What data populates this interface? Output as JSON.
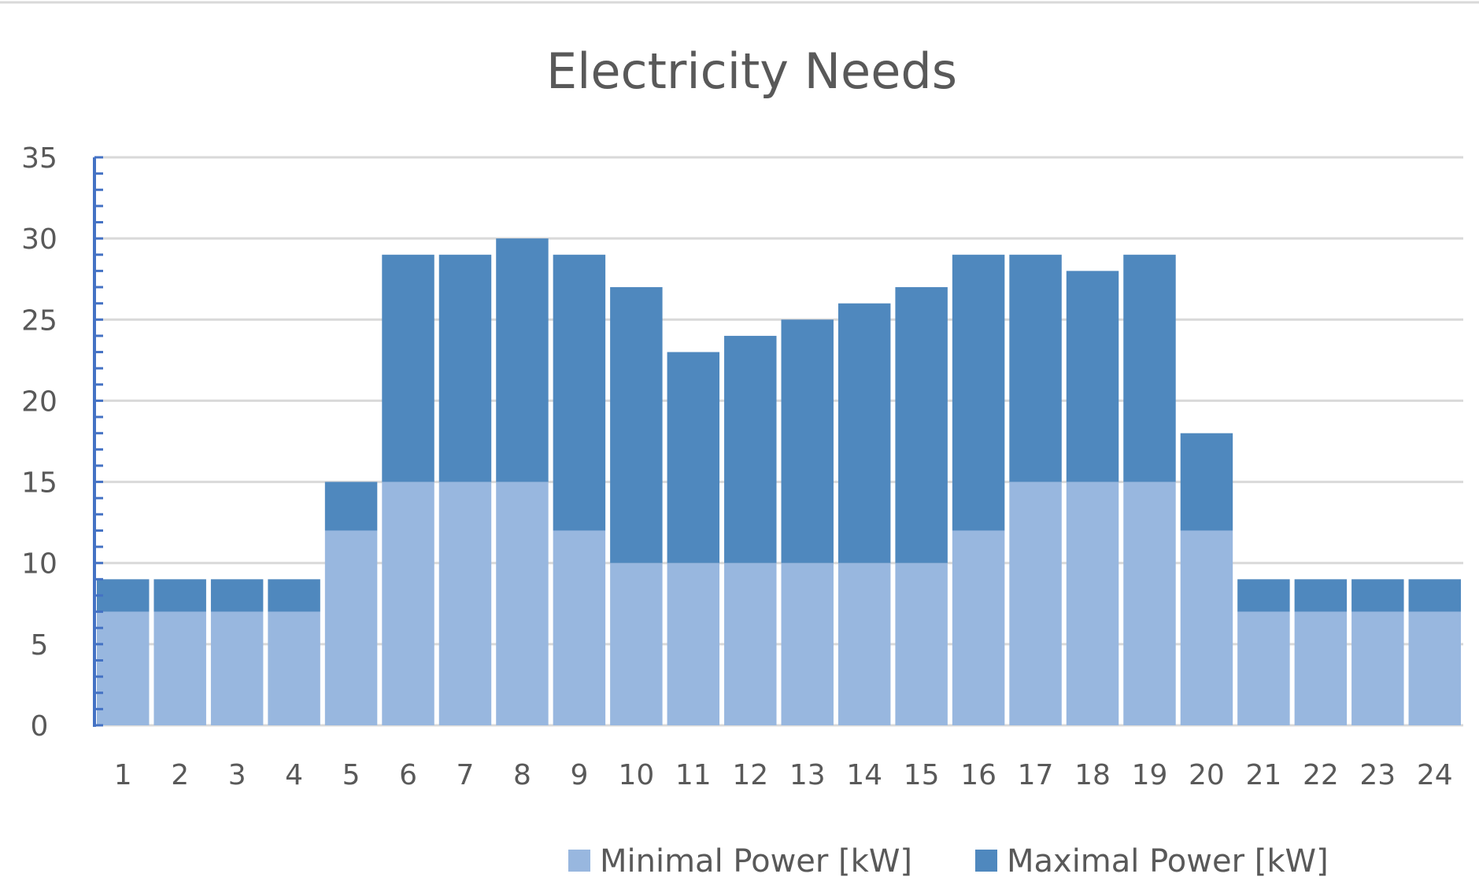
{
  "chart_data": {
    "type": "bar",
    "stacked": true,
    "title": "Electricity Needs",
    "xlabel": "",
    "ylabel": "",
    "categories": [
      "1",
      "2",
      "3",
      "4",
      "5",
      "6",
      "7",
      "8",
      "9",
      "10",
      "11",
      "12",
      "13",
      "14",
      "15",
      "16",
      "17",
      "18",
      "19",
      "20",
      "21",
      "22",
      "23",
      "24"
    ],
    "series": [
      {
        "name": "Minimal Power [kW]",
        "color": "#98b7df",
        "values": [
          7,
          7,
          7,
          7,
          12,
          15,
          15,
          15,
          12,
          10,
          10,
          10,
          10,
          10,
          10,
          12,
          15,
          15,
          15,
          12,
          7,
          7,
          7,
          7
        ]
      },
      {
        "name": "Maximal Power [kW]",
        "color": "#4f88be",
        "values": [
          2,
          2,
          2,
          2,
          3,
          14,
          14,
          15,
          17,
          17,
          13,
          14,
          15,
          16,
          17,
          17,
          14,
          13,
          14,
          6,
          2,
          2,
          2,
          2
        ]
      }
    ],
    "stack_totals": [
      9,
      9,
      9,
      9,
      15,
      29,
      29,
      30,
      29,
      27,
      23,
      24,
      25,
      26,
      27,
      29,
      29,
      28,
      29,
      18,
      9,
      9,
      9,
      9
    ],
    "ylim": [
      0,
      35
    ],
    "yticks": [
      "0",
      "5",
      "10",
      "15",
      "20",
      "25",
      "30",
      "35"
    ],
    "grid": true,
    "legend_position": "bottom"
  }
}
